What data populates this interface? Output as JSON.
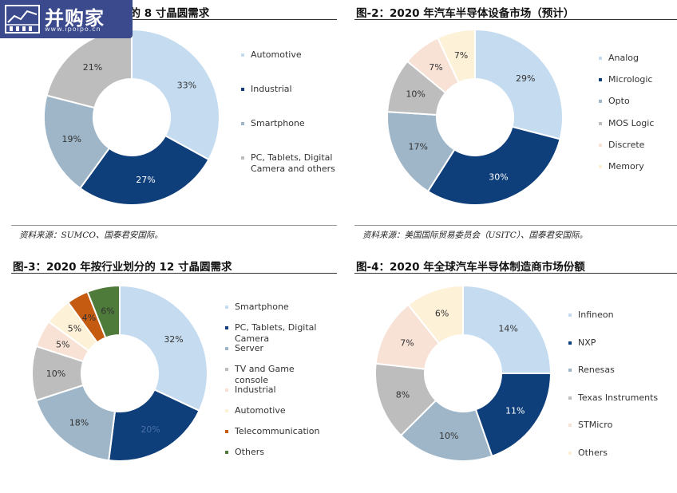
{
  "charts": [
    {
      "title": "图-1：2020 年按行业划分的 8 寸晶圆需求",
      "title_visible": "业划分的 8 寸晶圆需求",
      "source": "资料来源：SUMCO、国泰君安国际。"
    },
    {
      "title": "图-2：2020 年汽车半导体设备市场（预计）",
      "source": "资料来源：美国国际贸易委员会（USITC）、国泰君安国际。"
    },
    {
      "title": "图-3：2020 年按行业划分的 12 寸晶圆需求",
      "source": ""
    },
    {
      "title": "图-4：2020 年全球汽车半导体制造商市场份额",
      "source": ""
    }
  ],
  "watermark": {
    "name": "并购家",
    "url": "www.ipoipo.cn"
  },
  "chart_data": [
    {
      "type": "pie",
      "donut": true,
      "title": "图-1：2020 年按行业划分的 8 寸晶圆需求",
      "categories": [
        "Automotive",
        "Industrial",
        "Smartphone",
        "PC, Tablets, Digital Camera and others"
      ],
      "values": [
        33,
        27,
        19,
        21
      ],
      "labels": [
        "33%",
        "27%",
        "19%",
        "21%"
      ],
      "colors": [
        "#c5dcf0",
        "#0f3f7a",
        "#9eb6c8",
        "#bdbdbd"
      ],
      "label_colors": [
        "#333333",
        "#ffffff",
        "#333333",
        "#333333"
      ],
      "legend": "right"
    },
    {
      "type": "pie",
      "donut": true,
      "title": "图-2：2020 年汽车半导体设备市场（预计）",
      "categories": [
        "Analog",
        "Micrologic",
        "Opto",
        "MOS Logic",
        "Discrete",
        "Memory"
      ],
      "values": [
        29,
        30,
        17,
        10,
        7,
        7
      ],
      "labels": [
        "29%",
        "30%",
        "17%",
        "10%",
        "7%",
        "7%"
      ],
      "colors": [
        "#c5dcf0",
        "#0f3f7a",
        "#9eb6c8",
        "#bdbdbd",
        "#f8e2d6",
        "#fdf1d8"
      ],
      "label_colors": [
        "#333333",
        "#ffffff",
        "#333333",
        "#333333",
        "#333333",
        "#333333"
      ],
      "legend": "right"
    },
    {
      "type": "pie",
      "donut": true,
      "title": "图-3：2020 年按行业划分的 12 寸晶圆需求",
      "categories": [
        "Smartphone",
        "PC, Tablets, Digital Camera",
        "Server",
        "TV and Game console",
        "Industrial",
        "Automotive",
        "Telecommunication",
        "Others"
      ],
      "values": [
        32,
        20,
        18,
        10,
        5,
        5,
        4,
        6
      ],
      "labels": [
        "32%",
        "20%",
        "18%",
        "10%",
        "5%",
        "5%",
        "4%",
        "6%"
      ],
      "colors": [
        "#c5dcf0",
        "#0f3f7a",
        "#9eb6c8",
        "#bdbdbd",
        "#f8e2d6",
        "#fdf1d8",
        "#c55a11",
        "#4e7a3a"
      ],
      "label_colors": [
        "#333333",
        "#4a6fa5",
        "#333333",
        "#333333",
        "#333333",
        "#333333",
        "#333333",
        "#333333"
      ],
      "legend": "right"
    },
    {
      "type": "pie",
      "donut": true,
      "title": "图-4：2020 年全球汽车半导体制造商市场份额",
      "categories": [
        "Infineon",
        "NXP",
        "Renesas",
        "Texas Instruments",
        "STMicro",
        "Others"
      ],
      "values": [
        14,
        11,
        10,
        8,
        7,
        6
      ],
      "labels": [
        "14%",
        "11%",
        "10%",
        "8%",
        "7%",
        "6%"
      ],
      "colors": [
        "#c5dcf0",
        "#0f3f7a",
        "#9eb6c8",
        "#bdbdbd",
        "#f8e2d6",
        "#fdf1d8"
      ],
      "label_colors": [
        "#333333",
        "#ffffff",
        "#333333",
        "#333333",
        "#333333",
        "#333333"
      ],
      "legend": "right"
    }
  ]
}
